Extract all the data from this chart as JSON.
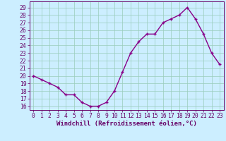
{
  "x": [
    0,
    1,
    2,
    3,
    4,
    5,
    6,
    7,
    8,
    9,
    10,
    11,
    12,
    13,
    14,
    15,
    16,
    17,
    18,
    19,
    20,
    21,
    22,
    23
  ],
  "y": [
    20,
    19.5,
    19,
    18.5,
    17.5,
    17.5,
    16.5,
    16,
    16,
    16.5,
    18,
    20.5,
    23,
    24.5,
    25.5,
    25.5,
    27,
    27.5,
    28,
    29,
    27.5,
    25.5,
    23,
    21.5
  ],
  "line_color": "#880088",
  "marker_color": "#880088",
  "bg_color": "#cceeff",
  "grid_color": "#99ccbb",
  "xlabel": "Windchill (Refroidissement éolien,°C)",
  "ylabel_ticks": [
    16,
    17,
    18,
    19,
    20,
    21,
    22,
    23,
    24,
    25,
    26,
    27,
    28,
    29
  ],
  "ylim": [
    15.5,
    29.8
  ],
  "xlim": [
    -0.5,
    23.5
  ],
  "xticks": [
    0,
    1,
    2,
    3,
    4,
    5,
    6,
    7,
    8,
    9,
    10,
    11,
    12,
    13,
    14,
    15,
    16,
    17,
    18,
    19,
    20,
    21,
    22,
    23
  ],
  "tick_color": "#660066",
  "font_size_label": 6.5,
  "font_size_tick": 5.8,
  "marker_size": 3.5,
  "line_width": 1.0
}
